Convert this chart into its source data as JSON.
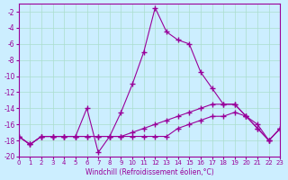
{
  "xlabel": "Windchill (Refroidissement éolien,°C)",
  "ylabel": "",
  "bg_color": "#cceeff",
  "grid_color": "#aaddcc",
  "line_color": "#990099",
  "xlim": [
    0,
    23
  ],
  "ylim": [
    -20,
    -1
  ],
  "yticks": [
    -20,
    -18,
    -16,
    -14,
    -12,
    -10,
    -8,
    -6,
    -4,
    -2
  ],
  "xticks": [
    0,
    1,
    2,
    3,
    4,
    5,
    6,
    7,
    8,
    9,
    10,
    11,
    12,
    13,
    14,
    15,
    16,
    17,
    18,
    19,
    20,
    21,
    22,
    23
  ],
  "series": [
    [
      [
        -17.5,
        -18.5,
        -17.5,
        -17.5,
        -17.5,
        -17.5,
        -14.0,
        -19.5,
        -17.5,
        -14.5,
        -11.0,
        -7.0,
        -1.5,
        -4.5,
        -5.5,
        -6.0,
        -9.5,
        -11.5,
        -13.5,
        -13.5,
        -15.0,
        -16.0,
        -18.0,
        -16.5
      ]
    ],
    [
      [
        -17.5,
        -18.5,
        -17.5,
        -17.5,
        -17.5,
        -17.5,
        -17.5,
        -17.5,
        -17.5,
        -17.5,
        -17.5,
        -17.5,
        -17.5,
        -17.5,
        -16.5,
        -16.0,
        -15.5,
        -15.0,
        -15.0,
        -14.5,
        -15.0,
        -16.5,
        -18.0,
        -16.5
      ]
    ],
    [
      [
        -17.5,
        -18.5,
        -17.5,
        -17.5,
        -17.5,
        -17.5,
        -17.5,
        -17.5,
        -17.5,
        -17.5,
        -17.0,
        -16.5,
        -16.0,
        -15.5,
        -15.0,
        -14.5,
        -14.0,
        -13.5,
        -13.5,
        -13.5,
        -15.0,
        -16.5,
        -18.0,
        -16.5
      ]
    ]
  ]
}
